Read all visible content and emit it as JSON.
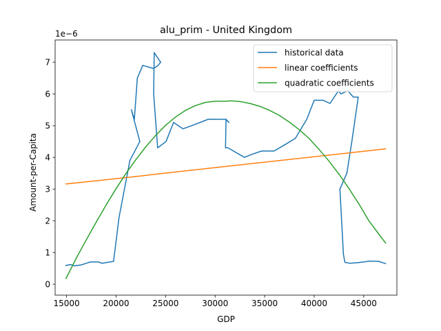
{
  "chart_data": {
    "type": "line",
    "title": "alu_prim - United Kingdom",
    "xlabel": "GDP",
    "ylabel": "Amount-per-Capita",
    "y_exponent_label": "1e−6",
    "xlim": [
      13850,
      48350
    ],
    "ylim": [
      -3.45e-07,
      7.7e-06
    ],
    "x_ticks": [
      {
        "value": 15000,
        "label": "15000"
      },
      {
        "value": 20000,
        "label": "20000"
      },
      {
        "value": 25000,
        "label": "25000"
      },
      {
        "value": 30000,
        "label": "30000"
      },
      {
        "value": 35000,
        "label": "35000"
      },
      {
        "value": 40000,
        "label": "40000"
      },
      {
        "value": 45000,
        "label": "45000"
      }
    ],
    "y_ticks": [
      {
        "value": 0,
        "label": "0"
      },
      {
        "value": 1e-06,
        "label": "1"
      },
      {
        "value": 2e-06,
        "label": "2"
      },
      {
        "value": 3e-06,
        "label": "3"
      },
      {
        "value": 4e-06,
        "label": "4"
      },
      {
        "value": 5e-06,
        "label": "5"
      },
      {
        "value": 6e-06,
        "label": "6"
      },
      {
        "value": 7e-06,
        "label": "7"
      }
    ],
    "legend_position": "top-right",
    "grid": false,
    "series": [
      {
        "name": "historical data",
        "color": "#1f77b4",
        "x": [
          47200,
          46500,
          45600,
          45000,
          44400,
          43600,
          43100,
          42950,
          42600,
          43300,
          43800,
          44450,
          43950,
          43400,
          42700,
          42450,
          41600,
          40900,
          40000,
          39250,
          38100,
          37050,
          35950,
          34700,
          33750,
          32950,
          31300,
          31050,
          31100,
          31400,
          31050,
          29300,
          27650,
          26750,
          25800,
          25050,
          24200,
          23800,
          23850,
          24500,
          24250,
          23800,
          22700,
          22150,
          21850,
          21550,
          22400,
          21400,
          20300,
          19750,
          18600,
          18200,
          17400,
          16800,
          16500,
          15800,
          15400,
          14950
        ],
        "y": [
          6.5e-07,
          7.2e-07,
          7.3e-07,
          7e-07,
          6.8e-07,
          6.6e-07,
          6.9e-07,
          9.4e-07,
          3e-06,
          3.5e-06,
          4.5e-06,
          5.9e-06,
          5.9e-06,
          6.1e-06,
          6e-06,
          6.1e-06,
          5.7e-06,
          5.8e-06,
          5.8e-06,
          5.2e-06,
          4.6e-06,
          4.4e-06,
          4.2e-06,
          4.2e-06,
          4.1e-06,
          4e-06,
          4.3e-06,
          4.3e-06,
          5.2e-06,
          5.1e-06,
          5.2e-06,
          5.2e-06,
          5e-06,
          4.9e-06,
          5.1e-06,
          4.5e-06,
          4.3e-06,
          6e-06,
          7.3e-06,
          7e-06,
          6.9e-06,
          6.8e-06,
          6.9e-06,
          6.5e-06,
          5.2e-06,
          5.5e-06,
          4.5e-06,
          3.9e-06,
          2.1e-06,
          7.2e-07,
          6.6e-07,
          7e-07,
          7e-07,
          6.4e-07,
          6.1e-07,
          5.8e-07,
          6.2e-07,
          5.9e-07
        ]
      },
      {
        "name": "linear coefficients",
        "color": "#ff7f0e",
        "x": [
          14950,
          22150,
          24300,
          31300,
          43800,
          44450,
          47200
        ],
        "y": [
          3.16e-06,
          3.4e-06,
          3.48e-06,
          3.72e-06,
          4.15e-06,
          4.17e-06,
          4.27e-06
        ]
      },
      {
        "name": "quadratic coefficients",
        "color": "#2ca02c",
        "x": [
          14950,
          16000,
          17000,
          18000,
          19000,
          20000,
          21000,
          22000,
          23000,
          24000,
          25000,
          26000,
          27000,
          28000,
          29000,
          30000,
          31000,
          31700,
          32500,
          33500,
          34500,
          35500,
          36500,
          37500,
          38500,
          39500,
          40500,
          41500,
          42500,
          43500,
          44500,
          45500,
          46500,
          47200
        ],
        "y": [
          1.8e-07,
          8.3e-07,
          1.4e-06,
          1.96e-06,
          2.5e-06,
          3.01e-06,
          3.49e-06,
          3.93e-06,
          4.33e-06,
          4.69e-06,
          5.01e-06,
          5.27e-06,
          5.48e-06,
          5.63e-06,
          5.73e-06,
          5.77e-06,
          5.77e-06,
          5.78e-06,
          5.76e-06,
          5.7e-06,
          5.61e-06,
          5.48e-06,
          5.32e-06,
          5.11e-06,
          4.87e-06,
          4.59e-06,
          4.25e-06,
          3.88e-06,
          3.47e-06,
          3.02e-06,
          2.54e-06,
          2.01e-06,
          1.59e-06,
          1.3e-06
        ]
      }
    ]
  }
}
